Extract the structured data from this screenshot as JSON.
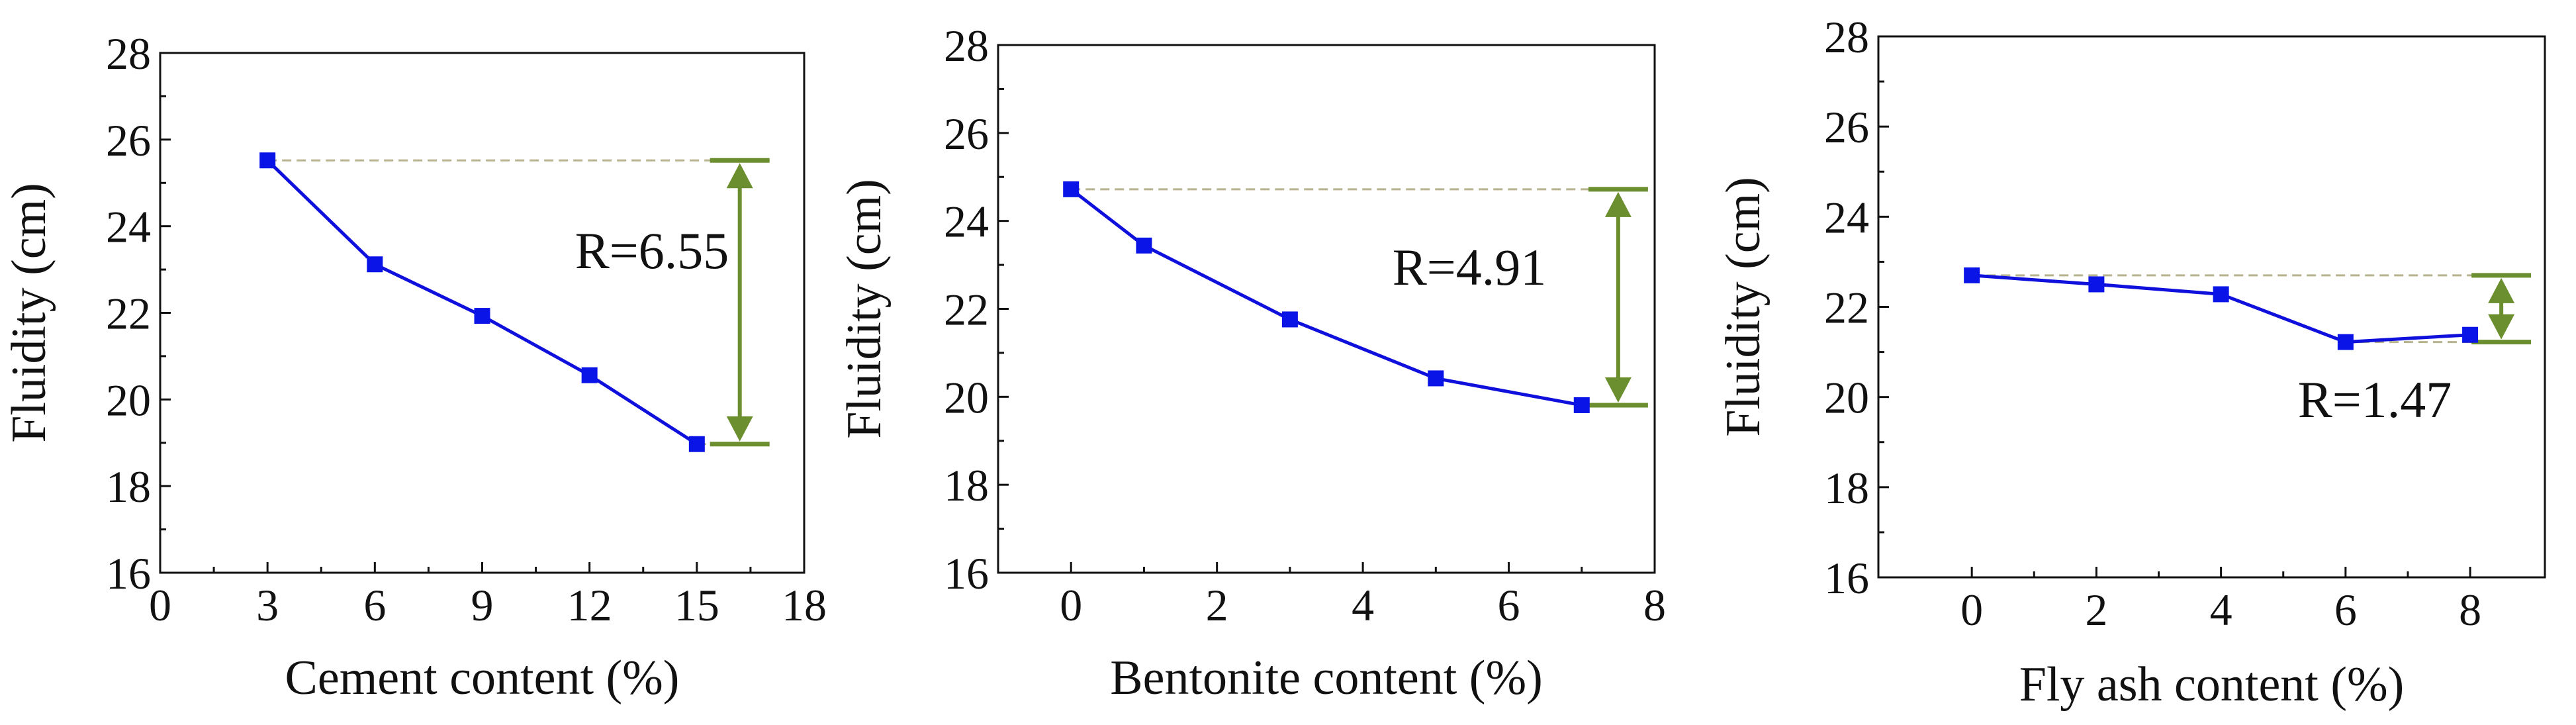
{
  "chart_data": [
    {
      "type": "line",
      "xlabel": "Cement content (%)",
      "ylabel": "Fluidity (cm)",
      "xlim": [
        0,
        18
      ],
      "ylim": [
        16,
        28
      ],
      "xticks": [
        0,
        3,
        6,
        9,
        12,
        15,
        18
      ],
      "yticks": [
        16,
        18,
        20,
        22,
        24,
        26,
        28
      ],
      "x": [
        3,
        6,
        9,
        12,
        15
      ],
      "values": [
        25.52,
        23.12,
        21.93,
        20.56,
        18.97
      ],
      "range_label": "R=6.55",
      "grid": false
    },
    {
      "type": "line",
      "xlabel": "Bentonite content (%)",
      "ylabel": "Fluidity (cm)",
      "xlim": [
        -1,
        8
      ],
      "ylim": [
        16,
        28
      ],
      "xticks": [
        0,
        2,
        4,
        6,
        8
      ],
      "yticks": [
        16,
        18,
        20,
        22,
        24,
        26,
        28
      ],
      "x": [
        0,
        1,
        3,
        5,
        7
      ],
      "values": [
        24.72,
        23.44,
        21.76,
        20.42,
        19.81
      ],
      "range_label": "R=4.91",
      "grid": false
    },
    {
      "type": "line",
      "xlabel": "Fly ash content (%)",
      "ylabel": "Fluidity (cm)",
      "xlim": [
        -1.5,
        9.2
      ],
      "ylim": [
        16,
        28
      ],
      "xticks": [
        0,
        2,
        4,
        6,
        8
      ],
      "yticks": [
        16,
        18,
        20,
        22,
        24,
        26,
        28
      ],
      "x": [
        0,
        2,
        4,
        6,
        8
      ],
      "values": [
        22.7,
        22.5,
        22.28,
        21.22,
        21.38
      ],
      "range_label": "R=1.47",
      "grid": false
    }
  ],
  "colors": {
    "series": "#1010dd",
    "marker": "#0a14e6",
    "range_line": "#b7b38e",
    "arrow": "#6b8e2e",
    "axis": "#111111"
  }
}
